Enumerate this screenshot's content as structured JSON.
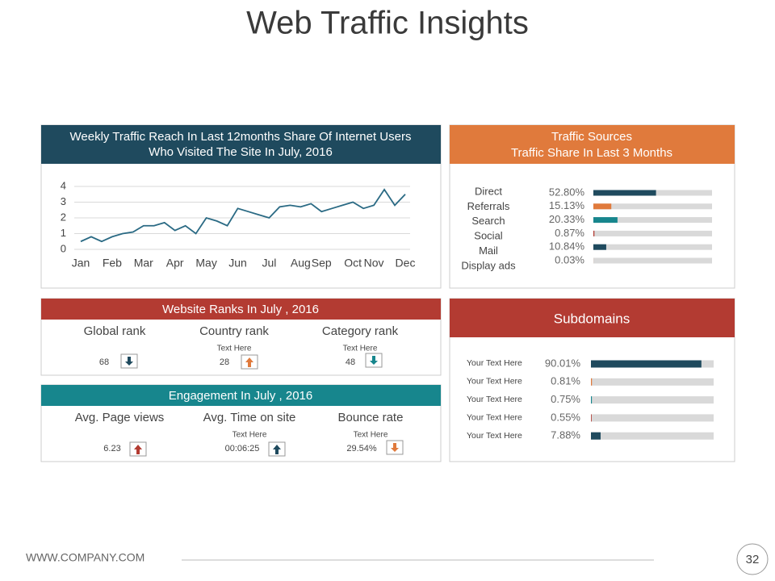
{
  "title": "Web Traffic Insights",
  "footer": {
    "website": "WWW.COMPANY.COM",
    "page": "32"
  },
  "chart_data": [
    {
      "type": "line",
      "title": [
        "Weekly Traffic Reach In Last 12months Share Of Internet Users",
        "Who Visited The Site In July, 2016"
      ],
      "categories": [
        "Jan",
        null,
        null,
        "Feb",
        null,
        null,
        "Mar",
        null,
        null,
        "Apr",
        null,
        null,
        "May",
        null,
        null,
        "Jun",
        null,
        null,
        "Jul",
        null,
        null,
        "Aug",
        null,
        "Sep",
        null,
        null,
        "Oct",
        null,
        "Nov",
        null,
        null,
        "Dec"
      ],
      "values": [
        0.5,
        0.8,
        0.5,
        0.8,
        1.0,
        1.1,
        1.5,
        1.5,
        1.7,
        1.2,
        1.5,
        1.0,
        2.0,
        1.8,
        1.5,
        2.6,
        2.4,
        2.2,
        2.0,
        2.7,
        2.8,
        2.7,
        2.9,
        2.4,
        2.6,
        2.8,
        3.0,
        2.6,
        2.8,
        3.8,
        2.8,
        3.5
      ],
      "color": "#2a6a84",
      "ylim": [
        0,
        4
      ],
      "yticks": [
        0,
        1,
        2,
        3,
        4
      ],
      "grid": true
    },
    {
      "type": "hbar",
      "title": [
        "Traffic Sources",
        "Traffic Share In Last 3 Months"
      ],
      "categories": [
        "Direct",
        "Referrals",
        "Search",
        "Social",
        "Mail",
        "Display ads"
      ],
      "values": [
        52.8,
        15.13,
        20.33,
        0.87,
        10.84,
        0.03
      ],
      "value_labels": [
        "52.80%",
        "15.13%",
        "20.33%",
        "0.87%",
        "10.84%",
        "0.03%"
      ],
      "colors": [
        "#1f4a5e",
        "#e07a3c",
        "#17868d",
        "#b33b32",
        "#1f4a5e",
        "#e07a3c"
      ],
      "xlim": [
        0,
        100
      ]
    },
    {
      "type": "hbar",
      "title": "Subdomains",
      "categories": [
        "Your Text Here",
        "Your Text Here",
        "Your Text Here",
        "Your Text Here",
        "Your Text Here"
      ],
      "values": [
        90.01,
        0.81,
        0.75,
        0.55,
        7.88
      ],
      "value_labels": [
        "90.01%",
        "0.81%",
        "0.75%",
        "0.55%",
        "7.88%"
      ],
      "colors": [
        "#1f4a5e",
        "#e07a3c",
        "#17868d",
        "#b33b32",
        "#1f4a5e"
      ],
      "xlim": [
        0,
        100
      ]
    }
  ],
  "ranks": {
    "title": "Website Ranks In July , 2016",
    "items": [
      {
        "label": "Global rank",
        "value": "68"
      },
      {
        "label": "Country rank",
        "note": "Text Here",
        "value": "28"
      },
      {
        "label": "Category rank",
        "note": "Text Here",
        "value": "48"
      }
    ]
  },
  "engagement": {
    "title": "Engagement In July , 2016",
    "items": [
      {
        "label": "Avg. Page views",
        "value": "6.23"
      },
      {
        "label": "Avg. Time on site",
        "note": "Text Here",
        "value": "00:06:25"
      },
      {
        "label": "Bounce rate",
        "note": "Text Here",
        "value": "29.54%"
      }
    ]
  }
}
